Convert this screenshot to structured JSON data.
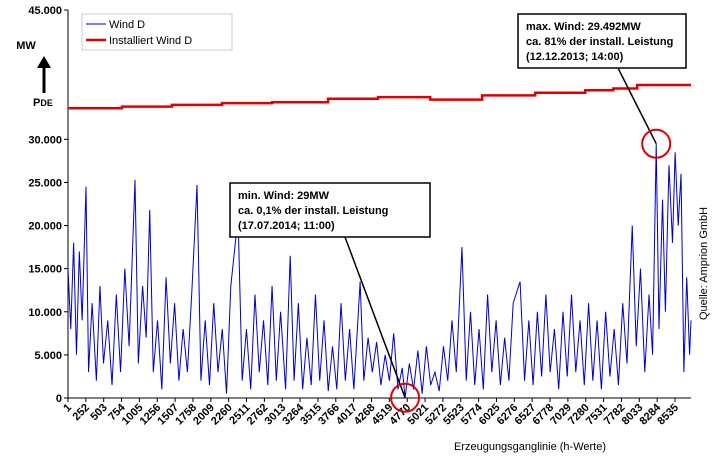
{
  "chart_data": {
    "type": "line",
    "x_label": "Erzeugungsganglinie (h-Werte)",
    "y_label": "MW",
    "y_symbol": "P",
    "y_symbol_sub": "DE",
    "source": "Quelle: Amprion GmbH",
    "legend": "upper left",
    "grid": false,
    "xlim": [
      1,
      8760
    ],
    "ylim": [
      0,
      45000
    ],
    "xticks": [
      1,
      252,
      503,
      754,
      1005,
      1256,
      1507,
      1758,
      2009,
      2260,
      2511,
      2762,
      3013,
      3264,
      3515,
      3766,
      4017,
      4268,
      4519,
      4770,
      5021,
      5272,
      5523,
      5774,
      6025,
      6276,
      6527,
      6778,
      7029,
      7280,
      7531,
      7782,
      8033,
      8284,
      8535
    ],
    "yticks": [
      {
        "value": 0,
        "label": "0"
      },
      {
        "value": 5000,
        "label": "5.000"
      },
      {
        "value": 10000,
        "label": "10.000"
      },
      {
        "value": 15000,
        "label": "15.000"
      },
      {
        "value": 20000,
        "label": "20.000"
      },
      {
        "value": 25000,
        "label": "25.000"
      },
      {
        "value": 30000,
        "label": "30.000"
      },
      {
        "value": 45000,
        "label": "45.000"
      }
    ],
    "series": [
      {
        "name": "Wind D",
        "color": "#0000c8",
        "x": [
          1,
          40,
          80,
          120,
          160,
          200,
          254,
          290,
          340,
          400,
          450,
          500,
          560,
          620,
          680,
          740,
          800,
          860,
          943,
          990,
          1050,
          1100,
          1150,
          1200,
          1260,
          1320,
          1380,
          1440,
          1500,
          1560,
          1620,
          1680,
          1740,
          1815,
          1870,
          1930,
          1990,
          2050,
          2110,
          2170,
          2230,
          2290,
          2392,
          2450,
          2510,
          2570,
          2630,
          2690,
          2750,
          2810,
          2870,
          2930,
          2990,
          3060,
          3125,
          3180,
          3240,
          3300,
          3360,
          3420,
          3480,
          3540,
          3600,
          3660,
          3720,
          3780,
          3840,
          3900,
          3960,
          4020,
          4108,
          4160,
          4220,
          4280,
          4340,
          4400,
          4460,
          4520,
          4580,
          4640,
          4700,
          4740,
          4800,
          4860,
          4920,
          4980,
          5040,
          5100,
          5160,
          5220,
          5280,
          5340,
          5400,
          5460,
          5540,
          5600,
          5660,
          5720,
          5780,
          5840,
          5900,
          5960,
          6020,
          6080,
          6140,
          6200,
          6260,
          6357,
          6420,
          6480,
          6540,
          6600,
          6660,
          6720,
          6780,
          6840,
          6900,
          6960,
          7020,
          7080,
          7140,
          7200,
          7260,
          7320,
          7380,
          7440,
          7500,
          7560,
          7620,
          7680,
          7740,
          7800,
          7860,
          7934,
          7990,
          8050,
          8110,
          8170,
          8220,
          8271,
          8310,
          8360,
          8400,
          8450,
          8500,
          8537,
          8580,
          8620,
          8660,
          8700,
          8740,
          8760
        ],
        "values": [
          15000,
          8000,
          18000,
          5000,
          17000,
          9000,
          24500,
          3000,
          11000,
          2000,
          13000,
          4000,
          9000,
          1500,
          12000,
          3000,
          15000,
          6000,
          25300,
          4000,
          13000,
          7000,
          21800,
          3000,
          9000,
          1000,
          14000,
          4000,
          11000,
          2000,
          8000,
          3000,
          12000,
          24700,
          2000,
          9000,
          1500,
          11000,
          3000,
          8000,
          500,
          13000,
          21000,
          2000,
          8000,
          1000,
          12000,
          3000,
          9000,
          1500,
          13000,
          2000,
          10000,
          1000,
          16500,
          2000,
          11000,
          1000,
          7000,
          1500,
          12000,
          2000,
          9000,
          800,
          6000,
          1000,
          11000,
          2000,
          8000,
          1000,
          13500,
          2000,
          7000,
          3000,
          6500,
          1500,
          5000,
          2000,
          7500,
          1000,
          3500,
          29,
          4000,
          1000,
          5500,
          500,
          6000,
          1500,
          3000,
          800,
          6000,
          2000,
          9000,
          3000,
          17500,
          2000,
          10000,
          1500,
          8000,
          1000,
          12000,
          3000,
          9000,
          1500,
          7000,
          2000,
          11000,
          13500,
          2000,
          9000,
          1500,
          10000,
          2500,
          12000,
          3000,
          8000,
          1000,
          10000,
          2500,
          12000,
          3000,
          9000,
          1500,
          11000,
          2000,
          9000,
          1000,
          10000,
          2500,
          8000,
          1500,
          11000,
          4000,
          20000,
          6000,
          15000,
          3000,
          12000,
          5000,
          29492,
          8000,
          23000,
          10000,
          27000,
          18000,
          28500,
          20000,
          26000,
          3000,
          14000,
          5000,
          9000
        ]
      },
      {
        "name": "Installiert Wind D",
        "color": "#e00000",
        "x": [
          1,
          760,
          760,
          1464,
          1464,
          2167,
          2167,
          2870,
          2870,
          3658,
          3658,
          4361,
          4361,
          5093,
          5093,
          5824,
          5824,
          6569,
          6569,
          7273,
          7273,
          7667,
          7667,
          8003,
          8003,
          8760
        ],
        "values": [
          33600,
          33600,
          33800,
          33800,
          34000,
          34000,
          34200,
          34200,
          34300,
          34300,
          34700,
          34700,
          34900,
          34900,
          34600,
          34600,
          35100,
          35100,
          35400,
          35400,
          35700,
          35700,
          35900,
          35900,
          36300,
          36300
        ]
      }
    ],
    "annotations": [
      {
        "lines": [
          "max. Wind: 29.492MW",
          "ca. 81% der install. Leistung",
          "(12.12.2013; 14:00)"
        ],
        "x": 8271,
        "y": 29492
      },
      {
        "lines": [
          "min. Wind: 29MW",
          "ca.  0,1% der install. Leistung",
          "(17.07.2014; 11:00)"
        ],
        "x": 4740,
        "y": 29
      }
    ]
  }
}
